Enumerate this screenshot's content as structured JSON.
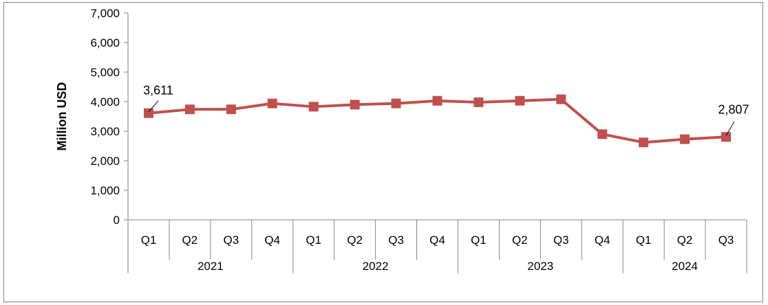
{
  "chart_data": {
    "type": "line",
    "ylabel": "Million USD",
    "ylim": [
      0,
      7000
    ],
    "yticks": [
      0,
      1000,
      2000,
      3000,
      4000,
      5000,
      6000,
      7000
    ],
    "ytick_labels": [
      "0",
      "1,000",
      "2,000",
      "3,000",
      "4,000",
      "5,000",
      "6,000",
      "7,000"
    ],
    "categories": [
      "Q1",
      "Q2",
      "Q3",
      "Q4",
      "Q1",
      "Q2",
      "Q3",
      "Q4",
      "Q1",
      "Q2",
      "Q3",
      "Q4",
      "Q1",
      "Q2",
      "Q3"
    ],
    "groups": [
      {
        "label": "2021",
        "count": 4
      },
      {
        "label": "2022",
        "count": 4
      },
      {
        "label": "2023",
        "count": 4
      },
      {
        "label": "2024",
        "count": 3
      }
    ],
    "series": [
      {
        "values": [
          3611,
          3740,
          3740,
          3940,
          3830,
          3900,
          3940,
          4030,
          3980,
          4030,
          4080,
          2900,
          2620,
          2730,
          2807
        ],
        "color": "#c0504d"
      }
    ],
    "annotations": [
      {
        "index": 0,
        "text": "3,611"
      },
      {
        "index": 14,
        "text": "2,807"
      }
    ],
    "grid": false,
    "legend": "none"
  }
}
